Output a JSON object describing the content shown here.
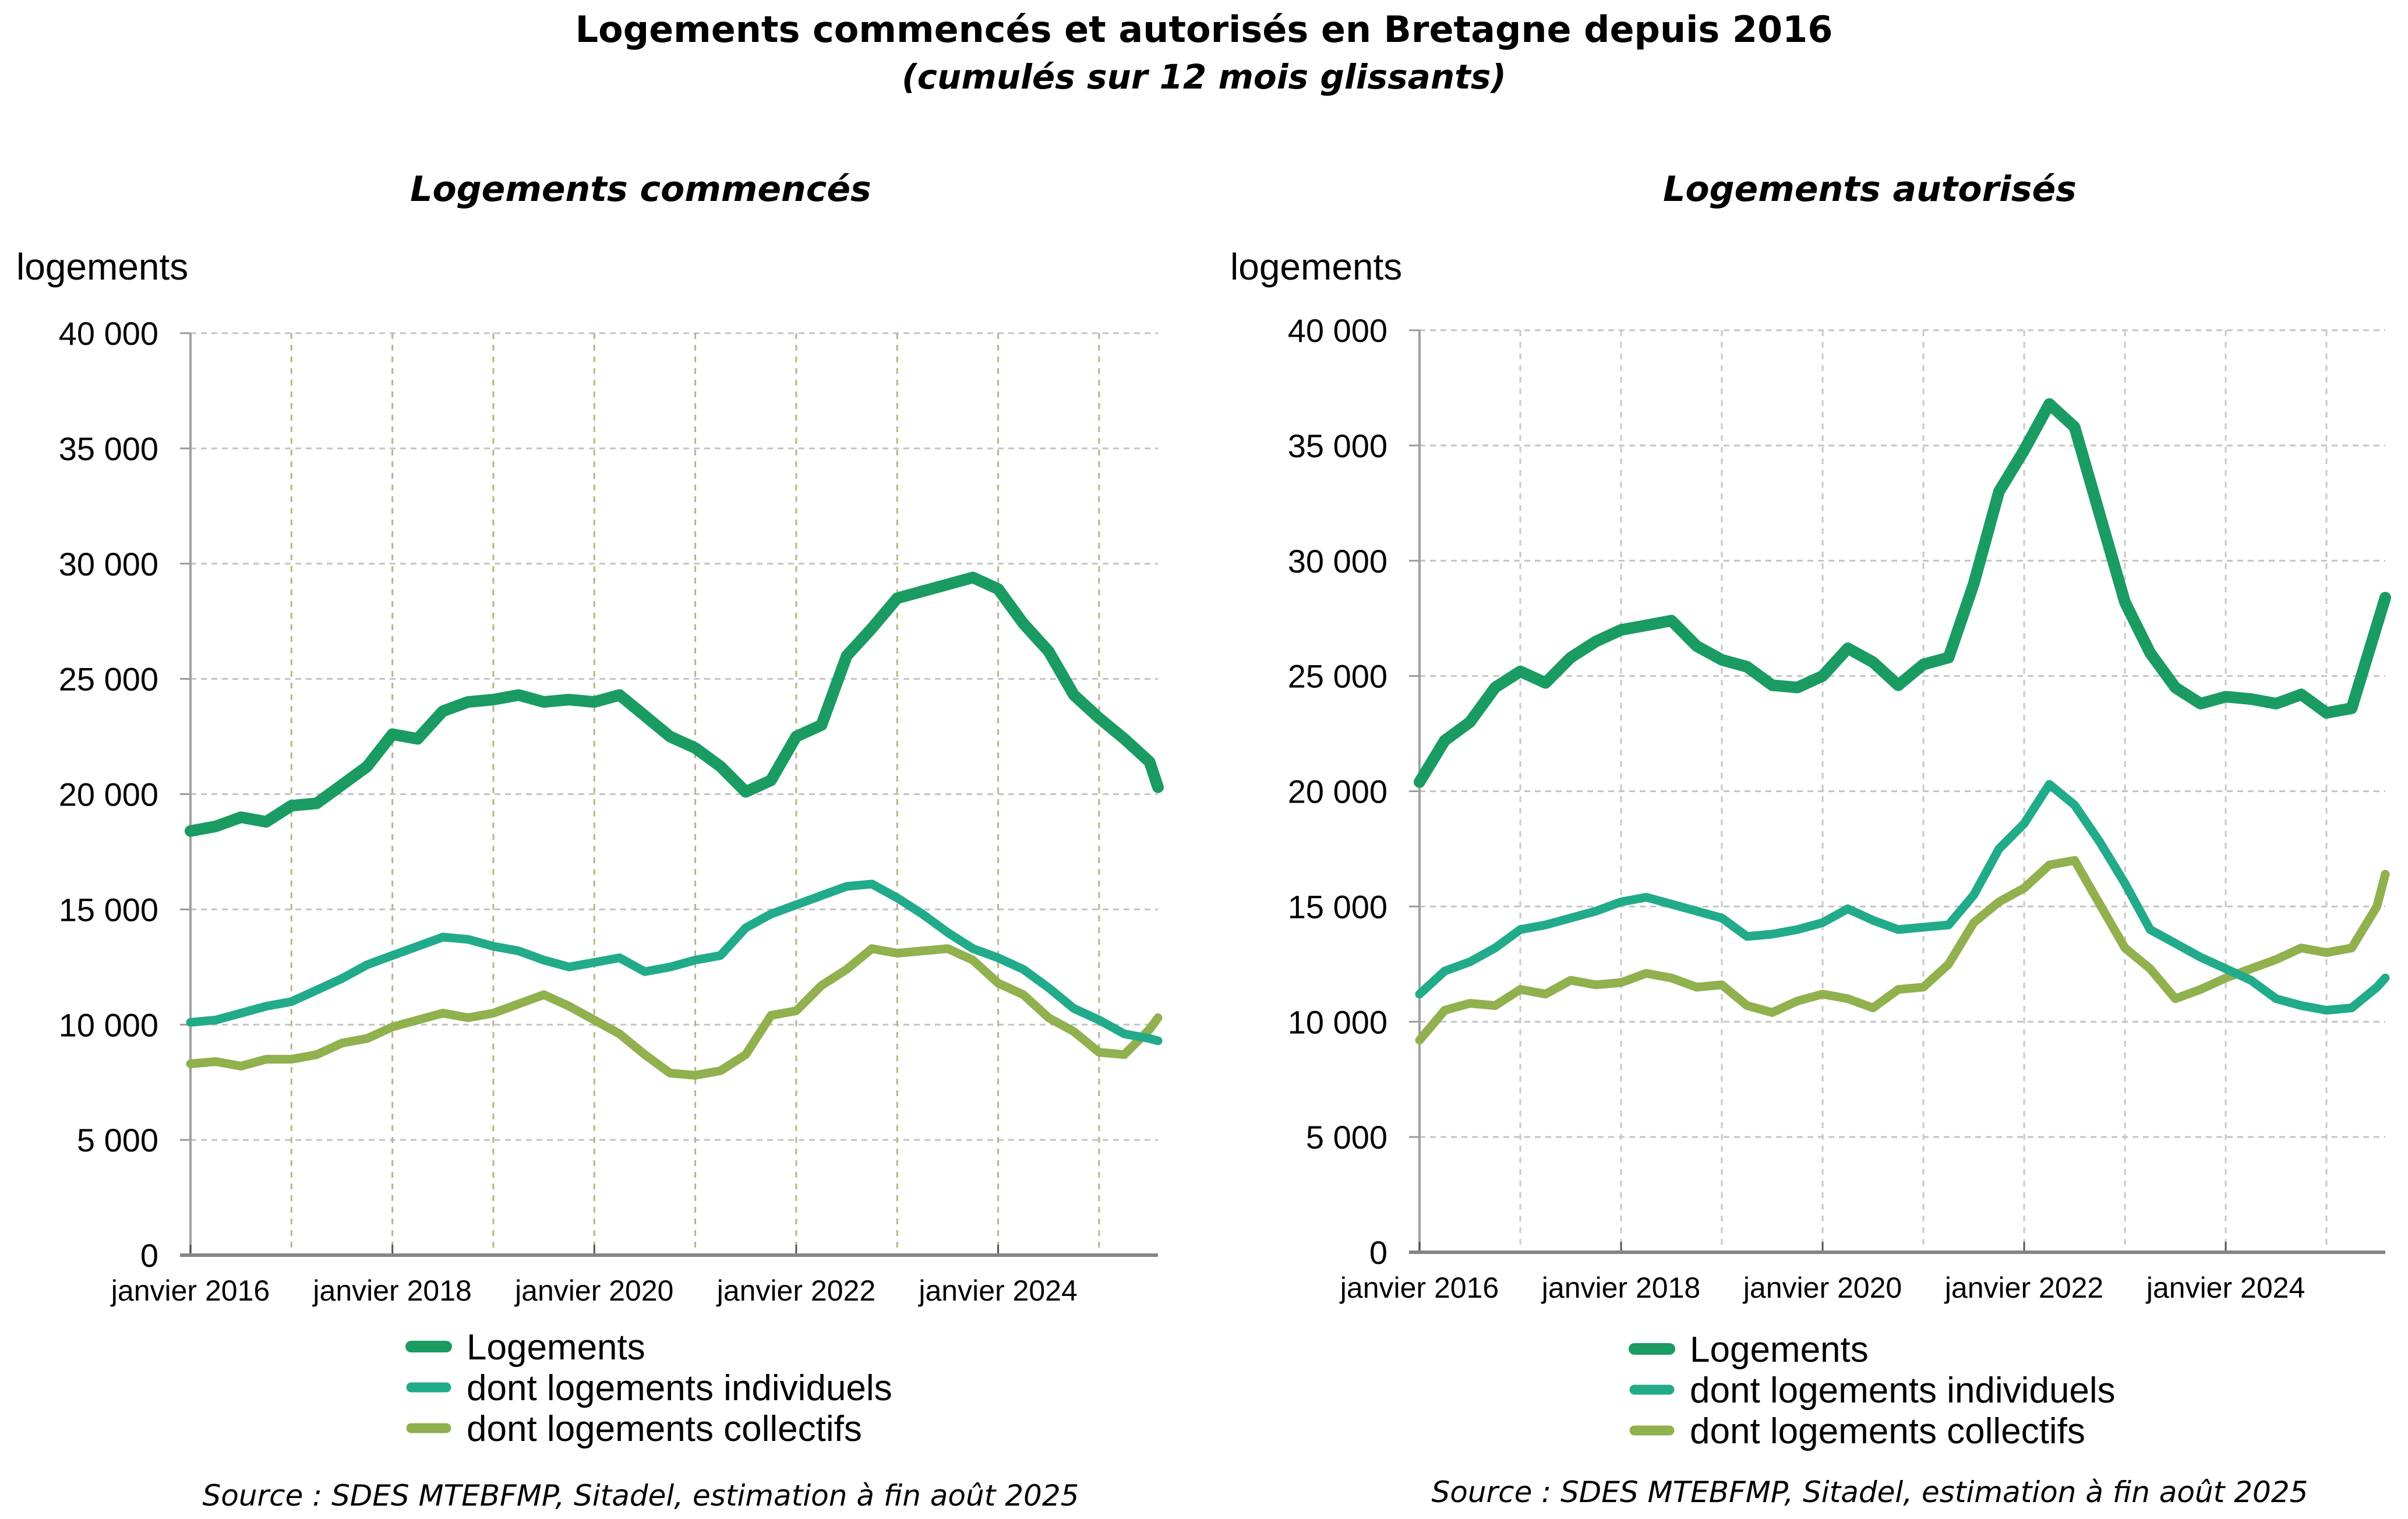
{
  "title": "Logements commencés et autorisés en Bretagne depuis 2016",
  "subtitle": "(cumulés sur 12 mois glissants)",
  "chart_data": [
    {
      "type": "line",
      "title": "Logements commencés",
      "ylabel": "logements",
      "xlabel": "",
      "ylim": [
        0,
        40000
      ],
      "yticks": [
        0,
        5000,
        10000,
        15000,
        20000,
        25000,
        30000,
        35000,
        40000
      ],
      "ytick_labels": [
        "0",
        "5 000",
        "10 000",
        "15 000",
        "20 000",
        "25 000",
        "30 000",
        "35 000",
        "40 000"
      ],
      "xticks": [
        "janvier 2016",
        "janvier 2018",
        "janvier 2020",
        "janvier 2022",
        "janvier 2024"
      ],
      "x_range": [
        "2016-01",
        "2025-08"
      ],
      "grid": true,
      "legend_position": "bottom",
      "source": "Source : SDES MTEBFMP, Sitadel, estimation à fin août 2025",
      "x": [
        "2016-01",
        "2016-04",
        "2016-07",
        "2016-10",
        "2017-01",
        "2017-04",
        "2017-07",
        "2017-10",
        "2018-01",
        "2018-04",
        "2018-07",
        "2018-10",
        "2019-01",
        "2019-04",
        "2019-07",
        "2019-10",
        "2020-01",
        "2020-04",
        "2020-07",
        "2020-10",
        "2021-01",
        "2021-04",
        "2021-07",
        "2021-10",
        "2022-01",
        "2022-04",
        "2022-07",
        "2022-10",
        "2023-01",
        "2023-04",
        "2023-07",
        "2023-10",
        "2024-01",
        "2024-04",
        "2024-07",
        "2024-10",
        "2025-01",
        "2025-04",
        "2025-07",
        "2025-08"
      ],
      "series": [
        {
          "name": "Logements",
          "color": "#1a9b62",
          "values": [
            18400,
            18600,
            19000,
            18800,
            19500,
            19600,
            20400,
            21200,
            22600,
            22400,
            23600,
            24000,
            24100,
            24300,
            24000,
            24100,
            24000,
            24300,
            23400,
            22500,
            22000,
            21200,
            20100,
            20600,
            22500,
            23000,
            26000,
            27200,
            28500,
            28800,
            29100,
            29400,
            28900,
            27400,
            26200,
            24300,
            23300,
            22400,
            21400,
            20300
          ]
        },
        {
          "name": "dont logements individuels",
          "color": "#21ab8a",
          "values": [
            10100,
            10200,
            10500,
            10800,
            11000,
            11500,
            12000,
            12600,
            13000,
            13400,
            13800,
            13700,
            13400,
            13200,
            12800,
            12500,
            12700,
            12900,
            12300,
            12500,
            12800,
            13000,
            14200,
            14800,
            15200,
            15600,
            16000,
            16100,
            15500,
            14800,
            14000,
            13300,
            12900,
            12400,
            11600,
            10700,
            10200,
            9600,
            9400,
            9300
          ]
        },
        {
          "name": "dont logements collectifs",
          "color": "#91b04e",
          "values": [
            8300,
            8400,
            8200,
            8500,
            8500,
            8700,
            9200,
            9400,
            9900,
            10200,
            10500,
            10300,
            10500,
            10900,
            11300,
            10800,
            10200,
            9600,
            8700,
            7900,
            7800,
            8000,
            8700,
            10400,
            10600,
            11700,
            12400,
            13300,
            13100,
            13200,
            13300,
            12800,
            11800,
            11300,
            10300,
            9700,
            8800,
            8700,
            9800,
            10300
          ]
        }
      ]
    },
    {
      "type": "line",
      "title": "Logements autorisés",
      "ylabel": "logements",
      "xlabel": "",
      "ylim": [
        0,
        40000
      ],
      "yticks": [
        0,
        5000,
        10000,
        15000,
        20000,
        25000,
        30000,
        35000,
        40000
      ],
      "ytick_labels": [
        "0",
        "5 000",
        "10 000",
        "15 000",
        "20 000",
        "25 000",
        "30 000",
        "35 000",
        "40 000"
      ],
      "xticks": [
        "janvier 2016",
        "janvier 2018",
        "janvier 2020",
        "janvier 2022",
        "janvier 2024"
      ],
      "x_range": [
        "2016-01",
        "2025-08"
      ],
      "grid": true,
      "legend_position": "bottom",
      "source": "Source : SDES MTEBFMP, Sitadel, estimation à fin août 2025",
      "x": [
        "2016-01",
        "2016-04",
        "2016-07",
        "2016-10",
        "2017-01",
        "2017-04",
        "2017-07",
        "2017-10",
        "2018-01",
        "2018-04",
        "2018-07",
        "2018-10",
        "2019-01",
        "2019-04",
        "2019-07",
        "2019-10",
        "2020-01",
        "2020-04",
        "2020-07",
        "2020-10",
        "2021-01",
        "2021-04",
        "2021-07",
        "2021-10",
        "2022-01",
        "2022-04",
        "2022-07",
        "2022-10",
        "2023-01",
        "2023-04",
        "2023-07",
        "2023-10",
        "2024-01",
        "2024-04",
        "2024-07",
        "2024-10",
        "2025-01",
        "2025-04",
        "2025-07",
        "2025-08"
      ],
      "series": [
        {
          "name": "Logements",
          "color": "#1a9b62",
          "values": [
            20400,
            22200,
            23000,
            24500,
            25200,
            24700,
            25800,
            26500,
            27000,
            27200,
            27400,
            26300,
            25700,
            25400,
            24600,
            24500,
            25000,
            26200,
            25600,
            24600,
            25500,
            25800,
            29000,
            33000,
            34800,
            36800,
            35800,
            32000,
            28200,
            26000,
            24500,
            23800,
            24100,
            24000,
            23800,
            24200,
            23400,
            23600,
            27200,
            28400
          ]
        },
        {
          "name": "dont logements individuels",
          "color": "#21ab8a",
          "values": [
            11200,
            12200,
            12600,
            13200,
            14000,
            14200,
            14500,
            14800,
            15200,
            15400,
            15100,
            14800,
            14500,
            13700,
            13800,
            14000,
            14300,
            14900,
            14400,
            14000,
            14100,
            14200,
            15500,
            17500,
            18600,
            20300,
            19400,
            17800,
            16000,
            14000,
            13400,
            12800,
            12300,
            11800,
            11000,
            10700,
            10500,
            10600,
            11500,
            11900
          ]
        },
        {
          "name": "dont logements collectifs",
          "color": "#91b04e",
          "values": [
            9200,
            10500,
            10800,
            10700,
            11400,
            11200,
            11800,
            11600,
            11700,
            12100,
            11900,
            11500,
            11600,
            10700,
            10400,
            10900,
            11200,
            11000,
            10600,
            11400,
            11500,
            12500,
            14300,
            15200,
            15800,
            16800,
            17000,
            15100,
            13200,
            12300,
            11000,
            11400,
            11900,
            12300,
            12700,
            13200,
            13000,
            13200,
            15000,
            16400
          ]
        }
      ]
    }
  ],
  "charts": {
    "left": {
      "title": "Logements commencés",
      "unit_label": "logements",
      "legend": [
        "Logements",
        "dont logements individuels",
        "dont logements collectifs"
      ],
      "source": "Source : SDES MTEBFMP, Sitadel, estimation à fin août 2025"
    },
    "right": {
      "title": "Logements autorisés",
      "unit_label": "logements",
      "legend": [
        "Logements",
        "dont logements individuels",
        "dont logements collectifs"
      ],
      "source": "Source : SDES MTEBFMP, Sitadel, estimation à fin août 2025"
    }
  }
}
